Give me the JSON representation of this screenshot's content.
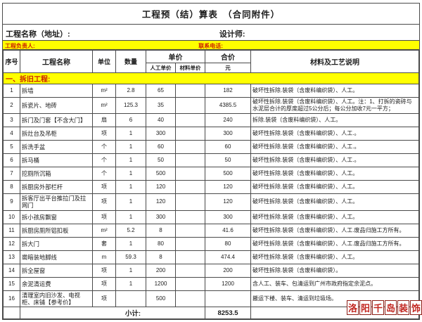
{
  "header": {
    "title": "工程预（结）算表　（合同附件）",
    "project_label": "工程名称（地址）:",
    "designer_label": "设计师:",
    "manager_label": "工程负责人:",
    "phone_label": "联系电话:"
  },
  "table": {
    "headers": {
      "no": "序号",
      "name": "工程名称",
      "unit": "单位",
      "qty": "数量",
      "price": "单价",
      "labor": "人工单价",
      "material": "材料单价",
      "total": "合价",
      "total_unit": "元",
      "desc": "材料及工艺说明"
    },
    "section": "一、拆旧工程:",
    "rows": [
      {
        "no": "1",
        "name": "拆墙",
        "unit": "m²",
        "qty": "2.8",
        "labor": "65",
        "material": "",
        "total": "182",
        "desc": "破坏性拆除.装袋（含废料编织袋）、人工。"
      },
      {
        "no": "2",
        "name": "拆瓷片、地砖",
        "unit": "m²",
        "qty": "125.3",
        "labor": "35",
        "material": "",
        "total": "4385.5",
        "desc": "破坏性拆除.装袋（含废料编织袋）、人工。注：1、打拆的瓷砖与水泥层合计的厚度超过5公分后；每公分加收7元一平方；"
      },
      {
        "no": "3",
        "name": "拆门及门套【不含大门】",
        "unit": "扇",
        "qty": "6",
        "labor": "40",
        "material": "",
        "total": "240",
        "desc": "拆除.装袋（含废料编织袋）、人工。"
      },
      {
        "no": "4",
        "name": "拆灶台及吊柜",
        "unit": "项",
        "qty": "1",
        "labor": "300",
        "material": "",
        "total": "300",
        "desc": "破坏性拆除.装袋（含废料编织袋）、人工.。"
      },
      {
        "no": "5",
        "name": "拆洗手盆",
        "unit": "个",
        "qty": "1",
        "labor": "60",
        "material": "",
        "total": "60",
        "desc": "破坏性拆除.装袋（含废料编织袋）、人工.。"
      },
      {
        "no": "6",
        "name": "拆马桶",
        "unit": "个",
        "qty": "1",
        "labor": "50",
        "material": "",
        "total": "50",
        "desc": "破坏性拆除.装袋（含废料编织袋）、人工.。"
      },
      {
        "no": "7",
        "name": "挖厕所沉箱",
        "unit": "个",
        "qty": "1",
        "labor": "500",
        "material": "",
        "total": "500",
        "desc": "破坏性拆除.装袋（含废料编织袋）、人工。"
      },
      {
        "no": "8",
        "name": "拆厨房外部栏杆",
        "unit": "项",
        "qty": "1",
        "labor": "120",
        "material": "",
        "total": "120",
        "desc": "破坏性拆除.装袋（含废料编织袋）、人工。"
      },
      {
        "no": "9",
        "name": "拆客厅出平台推拉门及拉网门",
        "unit": "项",
        "qty": "1",
        "labor": "120",
        "material": "",
        "total": "120",
        "desc": "破坏性拆除.装袋（含废料编织袋）、人工。"
      },
      {
        "no": "10",
        "name": "拆小孩房飘窗",
        "unit": "项",
        "qty": "1",
        "labor": "300",
        "material": "",
        "total": "300",
        "desc": "破坏性拆除.装袋（含废料编织袋）、人工。"
      },
      {
        "no": "11",
        "name": "拆厨房厕所铝扣板",
        "unit": "m²",
        "qty": "5.2",
        "labor": "8",
        "material": "",
        "total": "41.6",
        "desc": "破坏性拆除.装袋（含废料编织袋）、人工.废品归施工方所有。"
      },
      {
        "no": "12",
        "name": "拆大门",
        "unit": "套",
        "qty": "1",
        "labor": "80",
        "material": "",
        "total": "80",
        "desc": "破坏性拆除.装袋（含废料编织袋）、人工.废品归施工方所有。"
      },
      {
        "no": "13",
        "name": "凿暗装地脚线",
        "unit": "m",
        "qty": "59.3",
        "labor": "8",
        "material": "",
        "total": "474.4",
        "desc": "破坏性拆除.装袋（含废料编织袋）、人工。"
      },
      {
        "no": "14",
        "name": "拆全屋窗",
        "unit": "项",
        "qty": "1",
        "labor": "200",
        "material": "",
        "total": "200",
        "desc": "破坏性拆除.装袋（含废料编织袋）。"
      },
      {
        "no": "15",
        "name": "余泥清运费",
        "unit": "项",
        "qty": "1",
        "labor": "1200",
        "material": "",
        "total": "1200",
        "desc": "含人工、装车、包清运到广州市政府指定余泥点。"
      },
      {
        "no": "16",
        "name": "清理室内旧沙发、电视柜、床铺【参考价】",
        "unit": "项",
        "qty": "",
        "labor": "500",
        "material": "",
        "total": "",
        "desc": "搬运下楼、装车、清运到垃圾场。"
      }
    ],
    "subtotal": {
      "label": "小计:",
      "value": "8253.5"
    }
  },
  "watermark": {
    "text": "洛阳千岛装饰"
  },
  "colors": {
    "highlight_yellow": "#ffff00",
    "accent_red": "#cc2200",
    "watermark_red": "#c2251f"
  }
}
